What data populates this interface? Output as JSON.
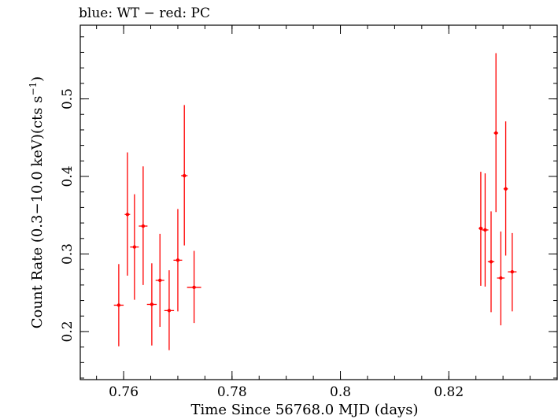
{
  "chart_data": {
    "type": "scatter",
    "title": "blue: WT − red: PC",
    "xlabel": "Time Since 56768.0 MJD (days)",
    "ylabel_main": "Count Rate (0.3−10.0 keV)(cts s",
    "ylabel_sup": "−1",
    "ylabel_end": ")",
    "xlim": [
      0.752,
      0.84
    ],
    "ylim": [
      0.138,
      0.595
    ],
    "x_ticks": [
      {
        "value": 0.76,
        "label": "0.76"
      },
      {
        "value": 0.78,
        "label": "0.78"
      },
      {
        "value": 0.8,
        "label": "0.8"
      },
      {
        "value": 0.82,
        "label": "0.82"
      }
    ],
    "x_minor_step": 0.005,
    "y_ticks": [
      {
        "value": 0.2,
        "label": "0.2"
      },
      {
        "value": 0.3,
        "label": "0.3"
      },
      {
        "value": 0.4,
        "label": "0.4"
      },
      {
        "value": 0.5,
        "label": "0.5"
      }
    ],
    "y_minor_step": 0.02,
    "series": [
      {
        "name": "PC",
        "color": "#ff0000",
        "points": [
          {
            "x": 0.7591,
            "xerr": 0.0009,
            "y": 0.234,
            "ylo": 0.181,
            "yhi": 0.287
          },
          {
            "x": 0.7607,
            "xerr": 0.0005,
            "y": 0.351,
            "ylo": 0.272,
            "yhi": 0.431
          },
          {
            "x": 0.762,
            "xerr": 0.0008,
            "y": 0.309,
            "ylo": 0.241,
            "yhi": 0.377
          },
          {
            "x": 0.7636,
            "xerr": 0.0008,
            "y": 0.336,
            "ylo": 0.26,
            "yhi": 0.413
          },
          {
            "x": 0.7652,
            "xerr": 0.0009,
            "y": 0.235,
            "ylo": 0.182,
            "yhi": 0.288
          },
          {
            "x": 0.7667,
            "xerr": 0.0008,
            "y": 0.266,
            "ylo": 0.206,
            "yhi": 0.326
          },
          {
            "x": 0.7684,
            "xerr": 0.0009,
            "y": 0.227,
            "ylo": 0.176,
            "yhi": 0.279
          },
          {
            "x": 0.77,
            "xerr": 0.0008,
            "y": 0.292,
            "ylo": 0.226,
            "yhi": 0.358
          },
          {
            "x": 0.7712,
            "xerr": 0.0006,
            "y": 0.401,
            "ylo": 0.311,
            "yhi": 0.492
          },
          {
            "x": 0.773,
            "xerr": 0.0013,
            "y": 0.257,
            "ylo": 0.211,
            "yhi": 0.304
          },
          {
            "x": 0.8259,
            "xerr": 0.0004,
            "y": 0.333,
            "ylo": 0.259,
            "yhi": 0.406
          },
          {
            "x": 0.8267,
            "xerr": 0.0006,
            "y": 0.331,
            "ylo": 0.258,
            "yhi": 0.404
          },
          {
            "x": 0.8278,
            "xerr": 0.0006,
            "y": 0.29,
            "ylo": 0.225,
            "yhi": 0.355
          },
          {
            "x": 0.8287,
            "xerr": 0.0004,
            "y": 0.456,
            "ylo": 0.354,
            "yhi": 0.559
          },
          {
            "x": 0.8296,
            "xerr": 0.0007,
            "y": 0.269,
            "ylo": 0.208,
            "yhi": 0.329
          },
          {
            "x": 0.8305,
            "xerr": 0.0004,
            "y": 0.384,
            "ylo": 0.298,
            "yhi": 0.471
          },
          {
            "x": 0.8317,
            "xerr": 0.0008,
            "y": 0.277,
            "ylo": 0.226,
            "yhi": 0.327
          }
        ]
      }
    ]
  }
}
